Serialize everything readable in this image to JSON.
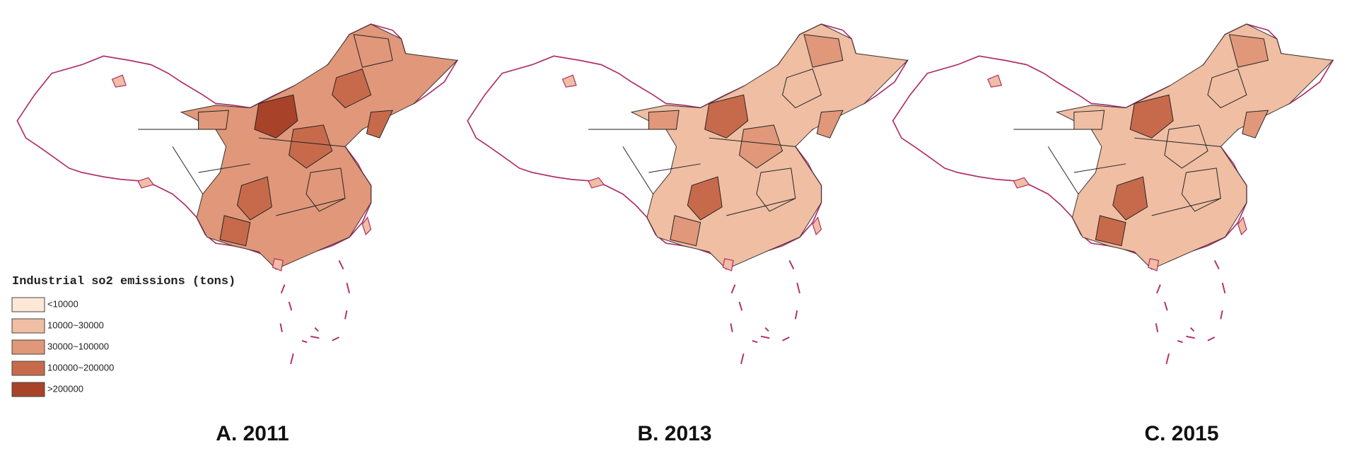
{
  "legend": {
    "title": "Industrial so2 emissions (tons)",
    "items": [
      {
        "label": "<10000",
        "color": "#fde8d8"
      },
      {
        "label": "10000~30000",
        "color": "#efbea3"
      },
      {
        "label": "30000~100000",
        "color": "#e0977a"
      },
      {
        "label": "100000~200000",
        "color": "#c76a4c"
      },
      {
        "label": ">200000",
        "color": "#a8432a"
      }
    ]
  },
  "panels": [
    {
      "caption": "A. 2011"
    },
    {
      "caption": "B. 2013"
    },
    {
      "caption": "C. 2015"
    }
  ]
}
